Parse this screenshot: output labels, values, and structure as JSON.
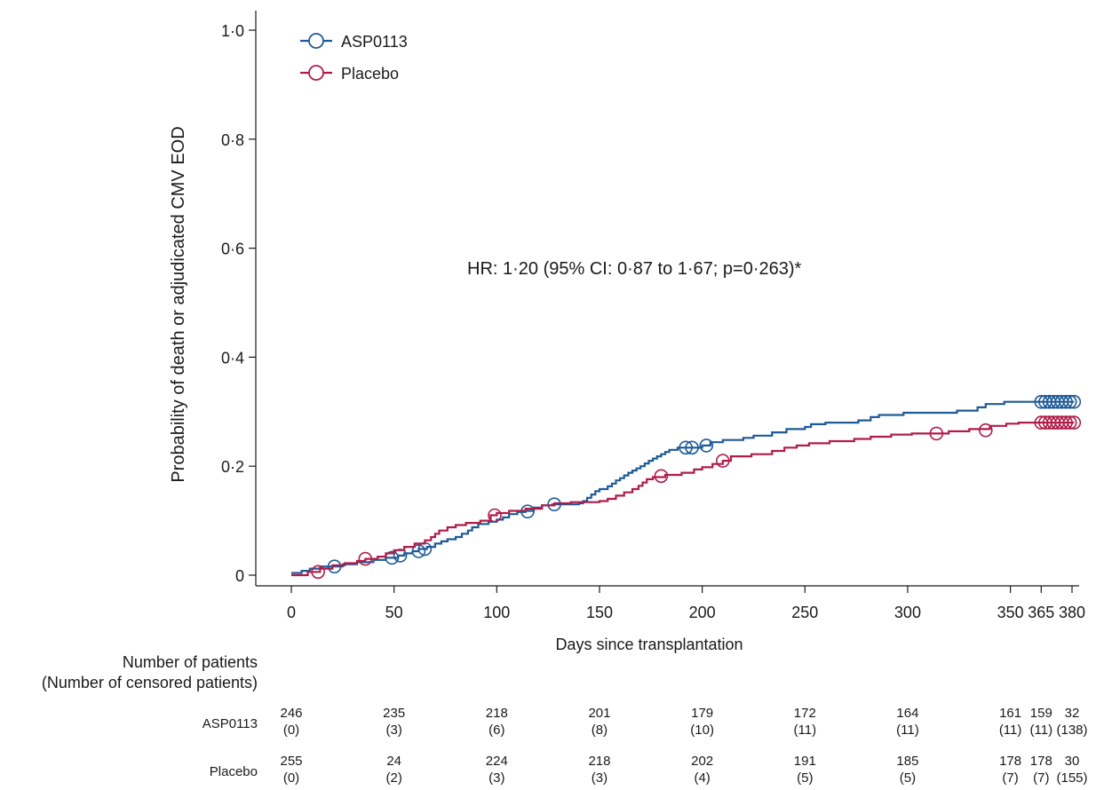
{
  "chart_data": {
    "type": "line",
    "title": "",
    "xlabel": "Days since transplantation",
    "ylabel": "Probability of death or adjudicated CMV EOD",
    "xlim": [
      -17,
      382
    ],
    "ylim": [
      -0.02,
      1.02
    ],
    "xticks": [
      0,
      50,
      100,
      150,
      200,
      250,
      300,
      350,
      365,
      380
    ],
    "xtick_labels": [
      "0",
      "50",
      "100",
      "150",
      "200",
      "250",
      "300",
      "350",
      "365",
      "380"
    ],
    "yticks": [
      0,
      0.2,
      0.4,
      0.6,
      0.8,
      1.0
    ],
    "ytick_labels": [
      "0",
      "0·2",
      "0·4",
      "0·6",
      "0·8",
      "1·0"
    ],
    "grid": false,
    "legend_position": "top-left",
    "annotation": "HR: 1·20 (95% CI: 0·87 to 1·67; p=0·263)*",
    "colors": {
      "ASP0113": "#1f5a97",
      "Placebo": "#b01c48"
    },
    "series": [
      {
        "name": "ASP0113",
        "color": "#1f5a97",
        "steps": [
          [
            0,
            0.004
          ],
          [
            5,
            0.008
          ],
          [
            9,
            0.012
          ],
          [
            14,
            0.016
          ],
          [
            20,
            0.016
          ],
          [
            25,
            0.02
          ],
          [
            32,
            0.024
          ],
          [
            40,
            0.028
          ],
          [
            46,
            0.032
          ],
          [
            52,
            0.036
          ],
          [
            55,
            0.04
          ],
          [
            59,
            0.044
          ],
          [
            62,
            0.048
          ],
          [
            66,
            0.052
          ],
          [
            70,
            0.058
          ],
          [
            73,
            0.062
          ],
          [
            76,
            0.066
          ],
          [
            80,
            0.07
          ],
          [
            83,
            0.076
          ],
          [
            86,
            0.082
          ],
          [
            88,
            0.088
          ],
          [
            91,
            0.094
          ],
          [
            96,
            0.098
          ],
          [
            100,
            0.102
          ],
          [
            103,
            0.106
          ],
          [
            106,
            0.112
          ],
          [
            110,
            0.116
          ],
          [
            114,
            0.118
          ],
          [
            118,
            0.124
          ],
          [
            122,
            0.128
          ],
          [
            127,
            0.13
          ],
          [
            140,
            0.132
          ],
          [
            142,
            0.136
          ],
          [
            144,
            0.142
          ],
          [
            146,
            0.148
          ],
          [
            148,
            0.154
          ],
          [
            150,
            0.158
          ],
          [
            154,
            0.163
          ],
          [
            156,
            0.168
          ],
          [
            158,
            0.174
          ],
          [
            160,
            0.178
          ],
          [
            162,
            0.183
          ],
          [
            164,
            0.188
          ],
          [
            166,
            0.192
          ],
          [
            168,
            0.196
          ],
          [
            170,
            0.2
          ],
          [
            172,
            0.205
          ],
          [
            174,
            0.21
          ],
          [
            176,
            0.214
          ],
          [
            178,
            0.218
          ],
          [
            180,
            0.222
          ],
          [
            182,
            0.226
          ],
          [
            184,
            0.23
          ],
          [
            188,
            0.234
          ],
          [
            200,
            0.238
          ],
          [
            204,
            0.244
          ],
          [
            210,
            0.248
          ],
          [
            220,
            0.252
          ],
          [
            225,
            0.256
          ],
          [
            234,
            0.262
          ],
          [
            241,
            0.268
          ],
          [
            250,
            0.272
          ],
          [
            253,
            0.277
          ],
          [
            260,
            0.28
          ],
          [
            276,
            0.284
          ],
          [
            282,
            0.29
          ],
          [
            286,
            0.294
          ],
          [
            298,
            0.298
          ],
          [
            324,
            0.302
          ],
          [
            334,
            0.308
          ],
          [
            338,
            0.314
          ],
          [
            347,
            0.318
          ],
          [
            360,
            0.318
          ],
          [
            381,
            0.318
          ]
        ],
        "censored": [
          [
            21,
            0.016
          ],
          [
            49,
            0.032
          ],
          [
            53,
            0.036
          ],
          [
            62,
            0.044
          ],
          [
            65,
            0.048
          ],
          [
            115,
            0.117
          ],
          [
            128,
            0.13
          ],
          [
            192,
            0.234
          ],
          [
            195,
            0.234
          ],
          [
            202,
            0.238
          ],
          [
            365,
            0.318
          ],
          [
            367,
            0.318
          ],
          [
            369,
            0.318
          ],
          [
            371,
            0.318
          ],
          [
            373,
            0.318
          ],
          [
            375,
            0.318
          ],
          [
            377,
            0.318
          ],
          [
            379,
            0.318
          ],
          [
            381,
            0.318
          ]
        ]
      },
      {
        "name": "Placebo",
        "color": "#b01c48",
        "steps": [
          [
            0,
            0
          ],
          [
            8,
            0.006
          ],
          [
            14,
            0.012
          ],
          [
            20,
            0.018
          ],
          [
            26,
            0.022
          ],
          [
            32,
            0.026
          ],
          [
            36,
            0.03
          ],
          [
            42,
            0.034
          ],
          [
            46,
            0.04
          ],
          [
            50,
            0.046
          ],
          [
            55,
            0.052
          ],
          [
            60,
            0.058
          ],
          [
            65,
            0.064
          ],
          [
            68,
            0.07
          ],
          [
            70,
            0.076
          ],
          [
            72,
            0.082
          ],
          [
            76,
            0.088
          ],
          [
            80,
            0.092
          ],
          [
            85,
            0.096
          ],
          [
            92,
            0.1
          ],
          [
            97,
            0.11
          ],
          [
            100,
            0.114
          ],
          [
            106,
            0.118
          ],
          [
            114,
            0.122
          ],
          [
            122,
            0.128
          ],
          [
            128,
            0.132
          ],
          [
            136,
            0.134
          ],
          [
            150,
            0.136
          ],
          [
            154,
            0.14
          ],
          [
            158,
            0.146
          ],
          [
            162,
            0.152
          ],
          [
            166,
            0.158
          ],
          [
            169,
            0.164
          ],
          [
            171,
            0.17
          ],
          [
            173,
            0.176
          ],
          [
            176,
            0.18
          ],
          [
            182,
            0.184
          ],
          [
            190,
            0.188
          ],
          [
            196,
            0.194
          ],
          [
            200,
            0.198
          ],
          [
            205,
            0.204
          ],
          [
            210,
            0.21
          ],
          [
            214,
            0.218
          ],
          [
            224,
            0.222
          ],
          [
            234,
            0.228
          ],
          [
            240,
            0.234
          ],
          [
            246,
            0.238
          ],
          [
            252,
            0.242
          ],
          [
            262,
            0.246
          ],
          [
            274,
            0.25
          ],
          [
            282,
            0.254
          ],
          [
            292,
            0.258
          ],
          [
            302,
            0.26
          ],
          [
            320,
            0.264
          ],
          [
            330,
            0.268
          ],
          [
            340,
            0.274
          ],
          [
            348,
            0.278
          ],
          [
            354,
            0.28
          ],
          [
            381,
            0.28
          ]
        ],
        "censored": [
          [
            13,
            0.006
          ],
          [
            36,
            0.03
          ],
          [
            99,
            0.11
          ],
          [
            180,
            0.182
          ],
          [
            210,
            0.21
          ],
          [
            314,
            0.26
          ],
          [
            338,
            0.266
          ],
          [
            365,
            0.28
          ],
          [
            367,
            0.28
          ],
          [
            369,
            0.28
          ],
          [
            371,
            0.28
          ],
          [
            373,
            0.28
          ],
          [
            375,
            0.28
          ],
          [
            377,
            0.28
          ],
          [
            379,
            0.28
          ],
          [
            381,
            0.28
          ]
        ]
      }
    ]
  },
  "risk_table": {
    "header_line1": "Number of patients",
    "header_line2": "(Number of censored patients)",
    "times": [
      0,
      50,
      100,
      150,
      200,
      250,
      300,
      350,
      365,
      380
    ],
    "rows": [
      {
        "name": "ASP0113",
        "at_risk": [
          "246",
          "235",
          "218",
          "201",
          "179",
          "172",
          "164",
          "161",
          "159",
          "32"
        ],
        "censored": [
          "(0)",
          "(3)",
          "(6)",
          "(8)",
          "(10)",
          "(11)",
          "(11)",
          "(11)",
          "(11)",
          "(138)"
        ]
      },
      {
        "name": "Placebo",
        "at_risk": [
          "255",
          "24",
          "224",
          "218",
          "202",
          "191",
          "185",
          "178",
          "178",
          "30"
        ],
        "censored": [
          "(0)",
          "(2)",
          "(3)",
          "(3)",
          "(4)",
          "(5)",
          "(5)",
          "(7)",
          "(7)",
          "(155)"
        ]
      }
    ]
  }
}
